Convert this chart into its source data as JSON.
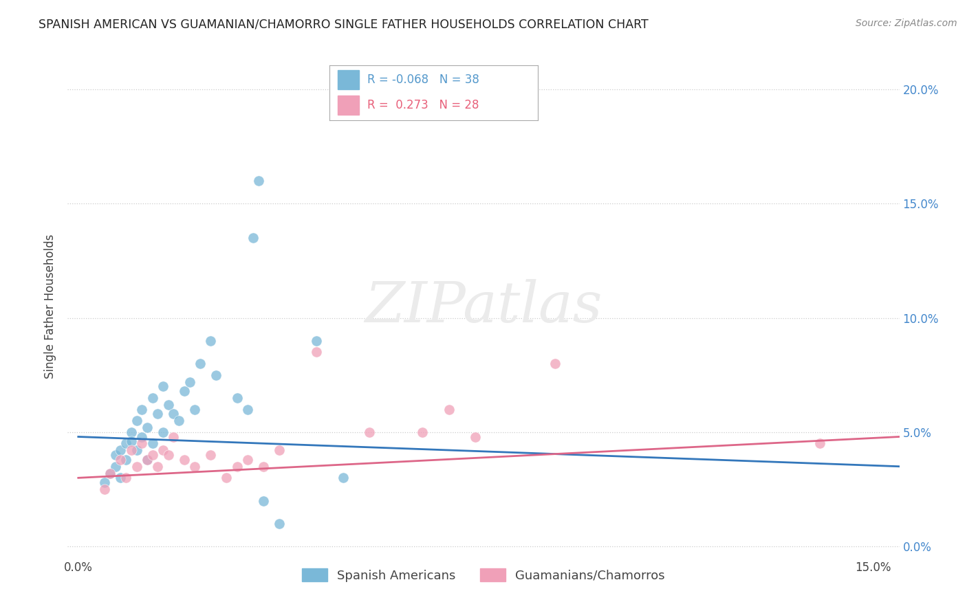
{
  "title": "SPANISH AMERICAN VS GUAMANIAN/CHAMORRO SINGLE FATHER HOUSEHOLDS CORRELATION CHART",
  "source": "Source: ZipAtlas.com",
  "ylabel": "Single Father Households",
  "xlim": [
    -0.002,
    0.155
  ],
  "ylim": [
    -0.005,
    0.215
  ],
  "ytick_values": [
    0.0,
    0.05,
    0.1,
    0.15,
    0.2
  ],
  "ytick_labels": [
    "0.0%",
    "5.0%",
    "10.0%",
    "15.0%",
    "20.0%"
  ],
  "xtick_values": [
    0.0,
    0.15
  ],
  "xtick_labels": [
    "0.0%",
    "15.0%"
  ],
  "legend_entries": [
    {
      "label": "Spanish Americans",
      "color": "#a8c8e8"
    },
    {
      "label": "Guamanians/Chamorros",
      "color": "#f4a8bc"
    }
  ],
  "legend_r_n": [
    {
      "R": "-0.068",
      "N": "38",
      "color": "#5599cc"
    },
    {
      "R": "0.273",
      "N": "28",
      "color": "#e8607a"
    }
  ],
  "watermark": "ZIPatlas",
  "blue_color": "#7ab8d8",
  "pink_color": "#f0a0b8",
  "blue_scatter": [
    [
      0.005,
      0.028
    ],
    [
      0.006,
      0.032
    ],
    [
      0.007,
      0.035
    ],
    [
      0.007,
      0.04
    ],
    [
      0.008,
      0.03
    ],
    [
      0.008,
      0.042
    ],
    [
      0.009,
      0.045
    ],
    [
      0.009,
      0.038
    ],
    [
      0.01,
      0.05
    ],
    [
      0.01,
      0.046
    ],
    [
      0.011,
      0.042
    ],
    [
      0.011,
      0.055
    ],
    [
      0.012,
      0.048
    ],
    [
      0.012,
      0.06
    ],
    [
      0.013,
      0.052
    ],
    [
      0.013,
      0.038
    ],
    [
      0.014,
      0.065
    ],
    [
      0.014,
      0.045
    ],
    [
      0.015,
      0.058
    ],
    [
      0.016,
      0.07
    ],
    [
      0.016,
      0.05
    ],
    [
      0.017,
      0.062
    ],
    [
      0.018,
      0.058
    ],
    [
      0.019,
      0.055
    ],
    [
      0.02,
      0.068
    ],
    [
      0.021,
      0.072
    ],
    [
      0.022,
      0.06
    ],
    [
      0.023,
      0.08
    ],
    [
      0.025,
      0.09
    ],
    [
      0.026,
      0.075
    ],
    [
      0.03,
      0.065
    ],
    [
      0.032,
      0.06
    ],
    [
      0.033,
      0.135
    ],
    [
      0.034,
      0.16
    ],
    [
      0.035,
      0.02
    ],
    [
      0.038,
      0.01
    ],
    [
      0.045,
      0.09
    ],
    [
      0.05,
      0.03
    ]
  ],
  "pink_scatter": [
    [
      0.005,
      0.025
    ],
    [
      0.006,
      0.032
    ],
    [
      0.008,
      0.038
    ],
    [
      0.009,
      0.03
    ],
    [
      0.01,
      0.042
    ],
    [
      0.011,
      0.035
    ],
    [
      0.012,
      0.045
    ],
    [
      0.013,
      0.038
    ],
    [
      0.014,
      0.04
    ],
    [
      0.015,
      0.035
    ],
    [
      0.016,
      0.042
    ],
    [
      0.017,
      0.04
    ],
    [
      0.018,
      0.048
    ],
    [
      0.02,
      0.038
    ],
    [
      0.022,
      0.035
    ],
    [
      0.025,
      0.04
    ],
    [
      0.028,
      0.03
    ],
    [
      0.03,
      0.035
    ],
    [
      0.032,
      0.038
    ],
    [
      0.035,
      0.035
    ],
    [
      0.038,
      0.042
    ],
    [
      0.045,
      0.085
    ],
    [
      0.055,
      0.05
    ],
    [
      0.065,
      0.05
    ],
    [
      0.07,
      0.06
    ],
    [
      0.075,
      0.048
    ],
    [
      0.09,
      0.08
    ],
    [
      0.14,
      0.045
    ]
  ],
  "blue_line_x": [
    0.0,
    0.155
  ],
  "blue_line_y": [
    0.048,
    0.035
  ],
  "pink_line_x": [
    0.0,
    0.155
  ],
  "pink_line_y": [
    0.03,
    0.048
  ],
  "background_color": "#ffffff",
  "grid_color": "#cccccc",
  "title_color": "#222222",
  "source_color": "#888888",
  "axis_color": "#4488cc"
}
